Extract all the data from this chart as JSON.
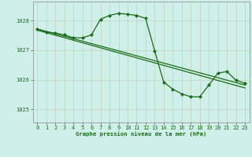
{
  "title": "Graphe pression niveau de la mer (hPa)",
  "bg_color": "#cff0e8",
  "grid_color": "#c8d8c8",
  "line_color": "#1a6b1a",
  "xlim": [
    -0.5,
    23.5
  ],
  "ylim": [
    1024.55,
    1028.65
  ],
  "yticks": [
    1025,
    1026,
    1027,
    1028
  ],
  "xticks": [
    0,
    1,
    2,
    3,
    4,
    5,
    6,
    7,
    8,
    9,
    10,
    11,
    12,
    13,
    14,
    15,
    16,
    17,
    18,
    19,
    20,
    21,
    22,
    23
  ],
  "series1_x": [
    0,
    23
  ],
  "series1_y": [
    1027.72,
    1025.82
  ],
  "series2_x": [
    0,
    23
  ],
  "series2_y": [
    1027.68,
    1025.72
  ],
  "series3": [
    1027.72,
    1027.62,
    1027.58,
    1027.52,
    1027.42,
    1027.42,
    1027.52,
    1028.05,
    1028.18,
    1028.25,
    1028.22,
    1028.18,
    1028.08,
    1026.98,
    1025.92,
    1025.68,
    1025.52,
    1025.42,
    1025.42,
    1025.82,
    1026.22,
    1026.28,
    1025.98,
    1025.88
  ],
  "ylabel_fontsize": 5.2,
  "tick_fontsize": 5.0
}
